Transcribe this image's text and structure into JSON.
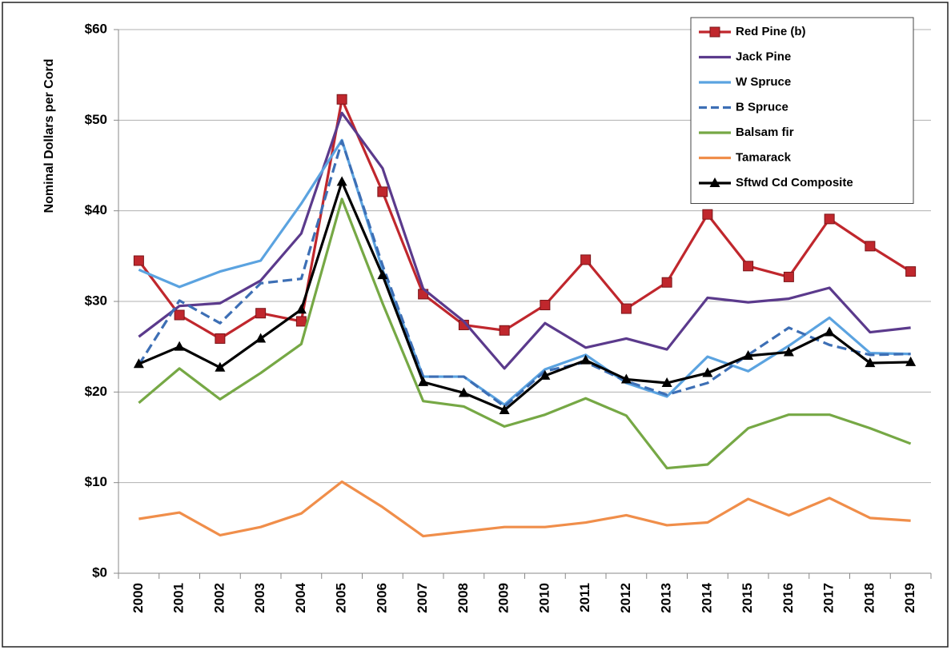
{
  "chart_data": {
    "type": "line",
    "y_label": "Nominal Dollars per Cord",
    "categories": [
      "2000",
      "2001",
      "2002",
      "2003",
      "2004",
      "2005",
      "2006",
      "2007",
      "2008",
      "2009",
      "2010",
      "2011",
      "2012",
      "2013",
      "2014",
      "2015",
      "2016",
      "2017",
      "2018",
      "2019"
    ],
    "ylim": [
      0,
      60
    ],
    "yticks": [
      {
        "value": 0,
        "label": "$0"
      },
      {
        "value": 10,
        "label": "$10"
      },
      {
        "value": 20,
        "label": "$20"
      },
      {
        "value": 30,
        "label": "$30"
      },
      {
        "value": 40,
        "label": "$40"
      },
      {
        "value": 50,
        "label": "$50"
      },
      {
        "value": 60,
        "label": "$60"
      }
    ],
    "grid": true,
    "legend": "top-right",
    "series": [
      {
        "name": "Red Pine (b)",
        "color": "#c0272d",
        "marker": "square",
        "dashed": false,
        "values": [
          34.5,
          28.5,
          25.9,
          28.7,
          27.8,
          52.3,
          42.1,
          30.8,
          27.4,
          26.8,
          29.6,
          34.6,
          29.2,
          32.1,
          39.6,
          33.9,
          32.7,
          39.1,
          36.1,
          33.3
        ]
      },
      {
        "name": "Jack Pine",
        "color": "#5b3a8c",
        "marker": "none",
        "dashed": false,
        "values": [
          26.1,
          29.5,
          29.8,
          32.3,
          37.5,
          50.8,
          44.7,
          31.4,
          27.8,
          22.6,
          27.6,
          24.9,
          25.9,
          24.7,
          30.4,
          29.9,
          30.3,
          31.5,
          26.6,
          27.1
        ]
      },
      {
        "name": "W Spruce",
        "color": "#5ba3e0",
        "marker": "none",
        "dashed": false,
        "values": [
          33.5,
          31.6,
          33.3,
          34.5,
          40.8,
          47.8,
          33.5,
          21.7,
          21.7,
          18.6,
          22.5,
          24.1,
          21.0,
          19.5,
          23.9,
          22.3,
          25.1,
          28.2,
          24.3,
          24.2
        ]
      },
      {
        "name": "B Spruce",
        "color": "#3d6fb5",
        "marker": "none",
        "dashed": true,
        "values": [
          23.0,
          30.1,
          27.6,
          32.0,
          32.5,
          47.7,
          34.0,
          21.7,
          21.7,
          18.4,
          22.3,
          23.3,
          21.2,
          19.7,
          21.0,
          24.1,
          27.1,
          25.2,
          24.1,
          24.2
        ]
      },
      {
        "name": "Balsam fir",
        "color": "#76a845",
        "marker": "none",
        "dashed": false,
        "values": [
          18.8,
          22.6,
          19.2,
          22.1,
          25.3,
          41.3,
          29.8,
          19.0,
          18.4,
          16.2,
          17.5,
          19.3,
          17.4,
          11.6,
          12.0,
          16.0,
          17.5,
          17.5,
          16.0,
          14.3
        ]
      },
      {
        "name": "Tamarack",
        "color": "#f08e4a",
        "marker": "none",
        "dashed": false,
        "values": [
          6.0,
          6.7,
          4.2,
          5.1,
          6.6,
          10.1,
          7.3,
          4.1,
          4.6,
          5.1,
          5.1,
          5.6,
          6.4,
          5.3,
          5.6,
          8.2,
          6.4,
          8.3,
          6.1,
          5.8
        ]
      },
      {
        "name": "Sftwd Cd Composite",
        "color": "#000000",
        "marker": "triangle",
        "dashed": false,
        "values": [
          23.1,
          25.0,
          22.7,
          25.9,
          29.1,
          43.2,
          32.9,
          21.1,
          19.9,
          18.0,
          21.8,
          23.5,
          21.4,
          21.0,
          22.1,
          24.0,
          24.4,
          26.6,
          23.2,
          23.3
        ]
      }
    ]
  }
}
